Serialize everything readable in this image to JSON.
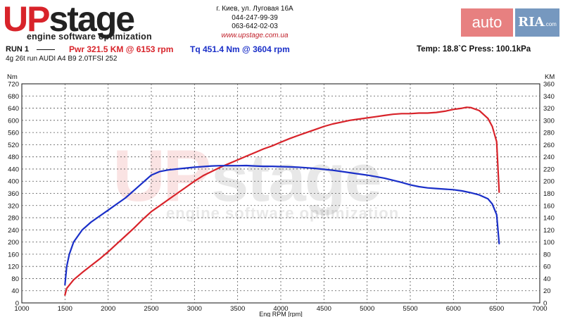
{
  "header": {
    "logo_up": "UP",
    "logo_stage": "stage",
    "logo_tagline": "engine software optimization",
    "address": "г. Киев, ул. Луговая 16А",
    "phone1": "044-247-99-39",
    "phone2": "063-642-02-03",
    "website": "www.upstage.com.ua",
    "watermark_auto": "auto",
    "watermark_ria": "RIA",
    "watermark_ria_suffix": ".com"
  },
  "run": {
    "label": "RUN 1",
    "power_text": "Pwr  321.5 KM @ 6153 rpm",
    "torque_text": "Tq  451.4 Nm @ 3604 rpm",
    "environment_text": "Temp: 18.8`C    Press: 100.1kPa",
    "car_text": "4g 26t run AUDI A4 B9 2.0TFSI 252"
  },
  "colors": {
    "power": "#d8232a",
    "torque": "#1a2fc8",
    "grid": "#555555"
  },
  "chart_data": {
    "type": "line",
    "xlabel": "Eng RPM [rpm]",
    "ylabel_left": "Nm",
    "ylabel_right": "KM",
    "xlim": [
      1000,
      7000
    ],
    "ylim_left": [
      0,
      720
    ],
    "ylim_right": [
      0,
      360
    ],
    "x_ticks": [
      1000,
      1500,
      2000,
      2500,
      3000,
      3500,
      4000,
      4500,
      5000,
      5500,
      6000,
      6500,
      7000
    ],
    "y_ticks_left": [
      0,
      40,
      80,
      120,
      160,
      200,
      240,
      280,
      320,
      360,
      400,
      440,
      480,
      520,
      560,
      600,
      640,
      680,
      720
    ],
    "y_ticks_right": [
      0,
      20,
      40,
      60,
      80,
      100,
      120,
      140,
      160,
      180,
      200,
      220,
      240,
      260,
      280,
      300,
      320,
      340,
      360
    ],
    "grid": true,
    "watermark": {
      "up": "UP",
      "stage": "stage",
      "tagline": "engine software optimization"
    },
    "series": [
      {
        "name": "Pwr",
        "axis": "right",
        "color": "#d8232a",
        "x": [
          1500,
          1520,
          1600,
          1700,
          1800,
          1900,
          2000,
          2100,
          2200,
          2300,
          2400,
          2500,
          2600,
          2700,
          2800,
          2900,
          3000,
          3100,
          3200,
          3300,
          3400,
          3500,
          3600,
          3700,
          3800,
          3900,
          4000,
          4100,
          4200,
          4300,
          4400,
          4500,
          4600,
          4700,
          4800,
          4900,
          5000,
          5100,
          5200,
          5300,
          5400,
          5500,
          5600,
          5700,
          5800,
          5900,
          6000,
          6100,
          6153,
          6200,
          6300,
          6400,
          6450,
          6500,
          6530
        ],
        "y": [
          13,
          24,
          38,
          50,
          61,
          72,
          84,
          97,
          110,
          123,
          137,
          150,
          160,
          170,
          180,
          190,
          200,
          209,
          216,
          223,
          229,
          235,
          241,
          247,
          253,
          258,
          264,
          270,
          275,
          280,
          285,
          290,
          294,
          297,
          300,
          302,
          304,
          306,
          308,
          310,
          311,
          311,
          312,
          312,
          313,
          315,
          318,
          320,
          321.5,
          321,
          316,
          303,
          290,
          265,
          182
        ]
      },
      {
        "name": "Tq",
        "axis": "left",
        "color": "#1a2fc8",
        "x": [
          1500,
          1520,
          1550,
          1600,
          1700,
          1800,
          1900,
          2000,
          2100,
          2200,
          2300,
          2400,
          2500,
          2600,
          2700,
          2800,
          2900,
          3000,
          3100,
          3200,
          3300,
          3400,
          3500,
          3604,
          3700,
          3800,
          3900,
          4000,
          4100,
          4200,
          4300,
          4400,
          4500,
          4600,
          4700,
          4800,
          4900,
          5000,
          5100,
          5200,
          5300,
          5400,
          5500,
          5600,
          5700,
          5800,
          5900,
          6000,
          6100,
          6200,
          6300,
          6400,
          6450,
          6500,
          6530
        ],
        "y": [
          60,
          120,
          160,
          200,
          240,
          265,
          285,
          305,
          325,
          345,
          370,
          395,
          420,
          432,
          437,
          440,
          443,
          446,
          448,
          450,
          451,
          451,
          451,
          451.4,
          450,
          449,
          449,
          448,
          447,
          446,
          444,
          442,
          439,
          436,
          432,
          428,
          424,
          420,
          415,
          410,
          403,
          396,
          388,
          382,
          378,
          376,
          374,
          372,
          368,
          362,
          355,
          342,
          325,
          290,
          195
        ]
      }
    ]
  }
}
